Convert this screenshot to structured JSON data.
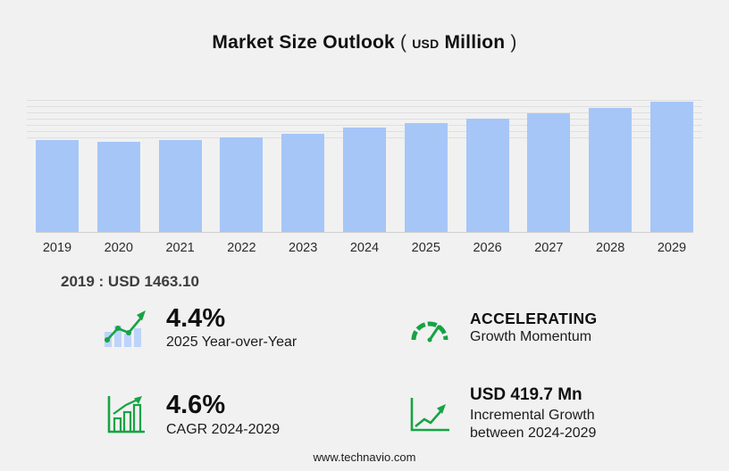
{
  "title": {
    "main": "Market Size Outlook",
    "open_paren": "(",
    "currency": "USD",
    "unit": "Million",
    "close_paren": ")"
  },
  "chart_data": {
    "type": "bar",
    "title": "Market Size Outlook (USD Million)",
    "categories": [
      "2019",
      "2020",
      "2021",
      "2022",
      "2023",
      "2024",
      "2025",
      "2026",
      "2027",
      "2028",
      "2029"
    ],
    "values": [
      1463.1,
      1442,
      1468,
      1512,
      1572,
      1664,
      1738,
      1817,
      1901,
      1990,
      2084
    ],
    "ylim": [
      0,
      2140
    ],
    "gridlines": [
      1500,
      1600,
      1700,
      1800,
      1900,
      2000,
      2100
    ],
    "xlabel": "",
    "ylabel": "",
    "legend": "none",
    "grid": "horizontal-top-region"
  },
  "base_note": {
    "text": "2019 : USD  1463.10"
  },
  "stats": [
    {
      "id": "yoy",
      "value": "4.4%",
      "label": "2025 Year-over-Year",
      "icon": "bar-chart-trend-icon"
    },
    {
      "id": "momentum",
      "value": "ACCELERATING",
      "label": "Growth Momentum",
      "icon": "speedometer-icon"
    },
    {
      "id": "cagr",
      "value": "4.6%",
      "label": "CAGR 2024-2029",
      "icon": "growth-bars-icon"
    },
    {
      "id": "incremental",
      "value": "USD 419.7 Mn",
      "label": "Incremental Growth between 2024-2029",
      "icon": "growth-line-icon"
    }
  ],
  "footer": {
    "url": "www.technavio.com"
  },
  "colors": {
    "accent_green": "#17a345",
    "bar_blue": "#a6c6f7",
    "bar_blue_light": "#bcd4fa",
    "background": "#f1f1f1"
  }
}
